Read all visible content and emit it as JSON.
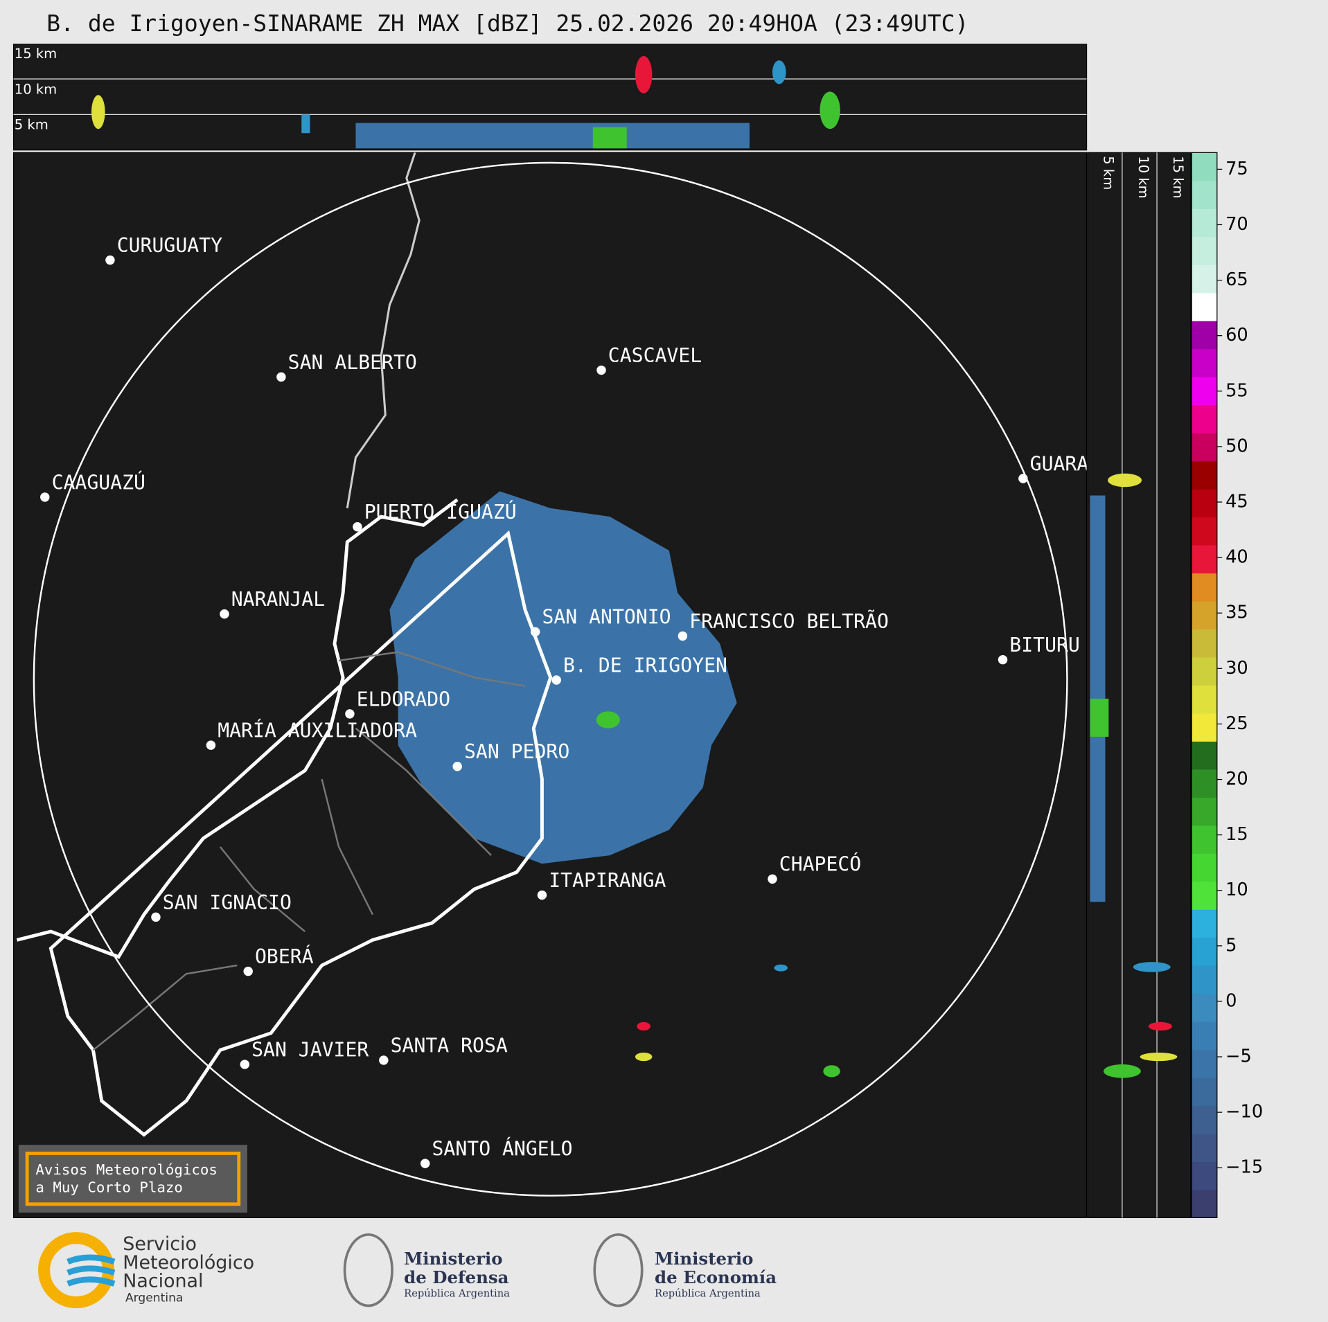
{
  "title": "B. de Irigoyen-SINARAME ZH MAX [dBZ] 25.02.2026 20:49HOA (23:49UTC)",
  "top_panel": {
    "labels": [
      "15 km",
      "10 km",
      "5 km"
    ]
  },
  "side_panel": {
    "labels": [
      "5 km",
      "10 km",
      "15 km"
    ]
  },
  "cities": [
    "CURUGUATY",
    "SAN ALBERTO",
    "CASCAVEL",
    "CAAGUAZÚ",
    "GUARA",
    "PUERTO IGUAZÚ",
    "NARANJAL",
    "SAN ANTONIO",
    "FRANCISCO BELTRÃO",
    "BITURU",
    "B. DE IRIGOYEN",
    "ELDORADO",
    "MARÍA AUXILIADORA",
    "SAN PEDRO",
    "CHAPECÓ",
    "ITAPIRANGA",
    "SAN IGNACIO",
    "OBERÁ",
    "SAN JAVIER",
    "SANTA ROSA",
    "SANTO ÁNGELO"
  ],
  "colorbar": {
    "lim": [
      -19.5,
      76.5
    ],
    "ticks": [
      {
        "value": -15,
        "label": "−15"
      },
      {
        "value": -10,
        "label": "−10"
      },
      {
        "value": -5,
        "label": "−5"
      },
      0,
      5,
      10,
      15,
      20,
      25,
      30,
      35,
      40,
      45,
      50,
      55,
      60,
      65,
      70,
      75
    ],
    "colors": [
      "#3a3f6e",
      "#3d4a7d",
      "#3f5588",
      "#3e6090",
      "#3b6a9c",
      "#3a74a8",
      "#3a7fb4",
      "#3b8bbf",
      "#2f95c8",
      "#28a1d3",
      "#2cb0dd",
      "#4fe33a",
      "#45d632",
      "#3fc32f",
      "#37a82a",
      "#2f8f27",
      "#236d1e",
      "#f1e83a",
      "#dfe03c",
      "#cdd03c",
      "#c9bb38",
      "#d5a22a",
      "#e08c20",
      "#e8173a",
      "#d0081e",
      "#b80010",
      "#9a0000",
      "#c9005e",
      "#ec008c",
      "#ee00ee",
      "#c800c8",
      "#a000a8",
      "#ffffff",
      "#d6f2e8",
      "#c6eedf",
      "#b5ead6",
      "#a2e4cb",
      "#8fdcbf"
    ]
  },
  "warning_box": {
    "lines": [
      "Avisos Meteorológicos",
      "a Muy Corto Plazo"
    ]
  },
  "footer": {
    "smn": [
      "Servicio",
      "Meteorológico",
      "Nacional",
      "Argentina"
    ],
    "defensa": [
      "Ministerio",
      "de Defensa",
      "República Argentina"
    ],
    "economia": [
      "Ministerio",
      "de Economía",
      "República Argentina"
    ]
  }
}
